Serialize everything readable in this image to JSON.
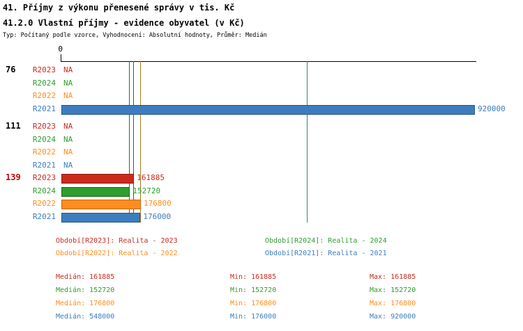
{
  "header": {
    "title1": "41. Příjmy z výkonu přenesené správy v tis. Kč",
    "title2": "41.2.0 Vlastní příjmy - evidence obyvatel (v Kč)",
    "subtitle": "Typ: Počítaný podle vzorce, Vyhodnocení: Absolutní hodnoty, Průměr: Medián"
  },
  "axis": {
    "zero_label": "0"
  },
  "colors": {
    "series": {
      "R2023": "#cc2a1e",
      "R2024": "#2e9e2e",
      "R2022": "#ff8c1e",
      "R2021": "#3d7dbf"
    },
    "border": {
      "R2023": "#8f1d14",
      "R2024": "#1d6b1d",
      "R2022": "#c2690f",
      "R2021": "#27567f"
    },
    "median": {
      "R2023": "#8b3a2a",
      "R2024": "#267326",
      "R2022": "#b2741e",
      "R2021": "#2e8b6e"
    },
    "axis": "#000000",
    "group_label_default": "#000000",
    "group_label_highlight": "#cc0000"
  },
  "chart_data": {
    "type": "bar",
    "orientation": "horizontal",
    "title": "41.2.0 Vlastní příjmy - evidence obyvatel (v Kč)",
    "xlabel": "",
    "ylabel": "",
    "x_range": [
      0,
      920000
    ],
    "grid": false,
    "series_order": [
      "R2023",
      "R2024",
      "R2022",
      "R2021"
    ],
    "groups": [
      {
        "label": "76",
        "highlight": false,
        "bars": [
          {
            "series": "R2023",
            "value": null,
            "text": "NA"
          },
          {
            "series": "R2024",
            "value": null,
            "text": "NA"
          },
          {
            "series": "R2022",
            "value": null,
            "text": "NA"
          },
          {
            "series": "R2021",
            "value": 920000,
            "text": "920000"
          }
        ]
      },
      {
        "label": "111",
        "highlight": false,
        "bars": [
          {
            "series": "R2023",
            "value": null,
            "text": "NA"
          },
          {
            "series": "R2024",
            "value": null,
            "text": "NA"
          },
          {
            "series": "R2022",
            "value": null,
            "text": "NA"
          },
          {
            "series": "R2021",
            "value": null,
            "text": "NA"
          }
        ]
      },
      {
        "label": "139",
        "highlight": true,
        "bars": [
          {
            "series": "R2023",
            "value": 161885,
            "text": "161885"
          },
          {
            "series": "R2024",
            "value": 152720,
            "text": "152720"
          },
          {
            "series": "R2022",
            "value": 176800,
            "text": "176800"
          },
          {
            "series": "R2021",
            "value": 176000,
            "text": "176000"
          }
        ]
      }
    ],
    "median_lines": [
      {
        "series": "R2023",
        "value": 161885
      },
      {
        "series": "R2024",
        "value": 152720
      },
      {
        "series": "R2022",
        "value": 176800
      },
      {
        "series": "R2021",
        "value": 548000
      }
    ]
  },
  "legend": [
    {
      "series": "R2023",
      "text": "Období[R2023]: Realita - 2023"
    },
    {
      "series": "R2024",
      "text": "Období[R2024]: Realita - 2024"
    },
    {
      "series": "R2022",
      "text": "Období[R2022]: Realita - 2022"
    },
    {
      "series": "R2021",
      "text": "Období[R2021]: Realita - 2021"
    }
  ],
  "stats": [
    {
      "series": "R2023",
      "median": "Medián: 161885",
      "min": "Min: 161885",
      "max": "Max: 161885"
    },
    {
      "series": "R2024",
      "median": "Medián: 152720",
      "min": "Min: 152720",
      "max": "Max: 152720"
    },
    {
      "series": "R2022",
      "median": "Medián: 176800",
      "min": "Min: 176800",
      "max": "Max: 176800"
    },
    {
      "series": "R2021",
      "median": "Medián: 548000",
      "min": "Min: 176000",
      "max": "Max: 920000"
    }
  ]
}
